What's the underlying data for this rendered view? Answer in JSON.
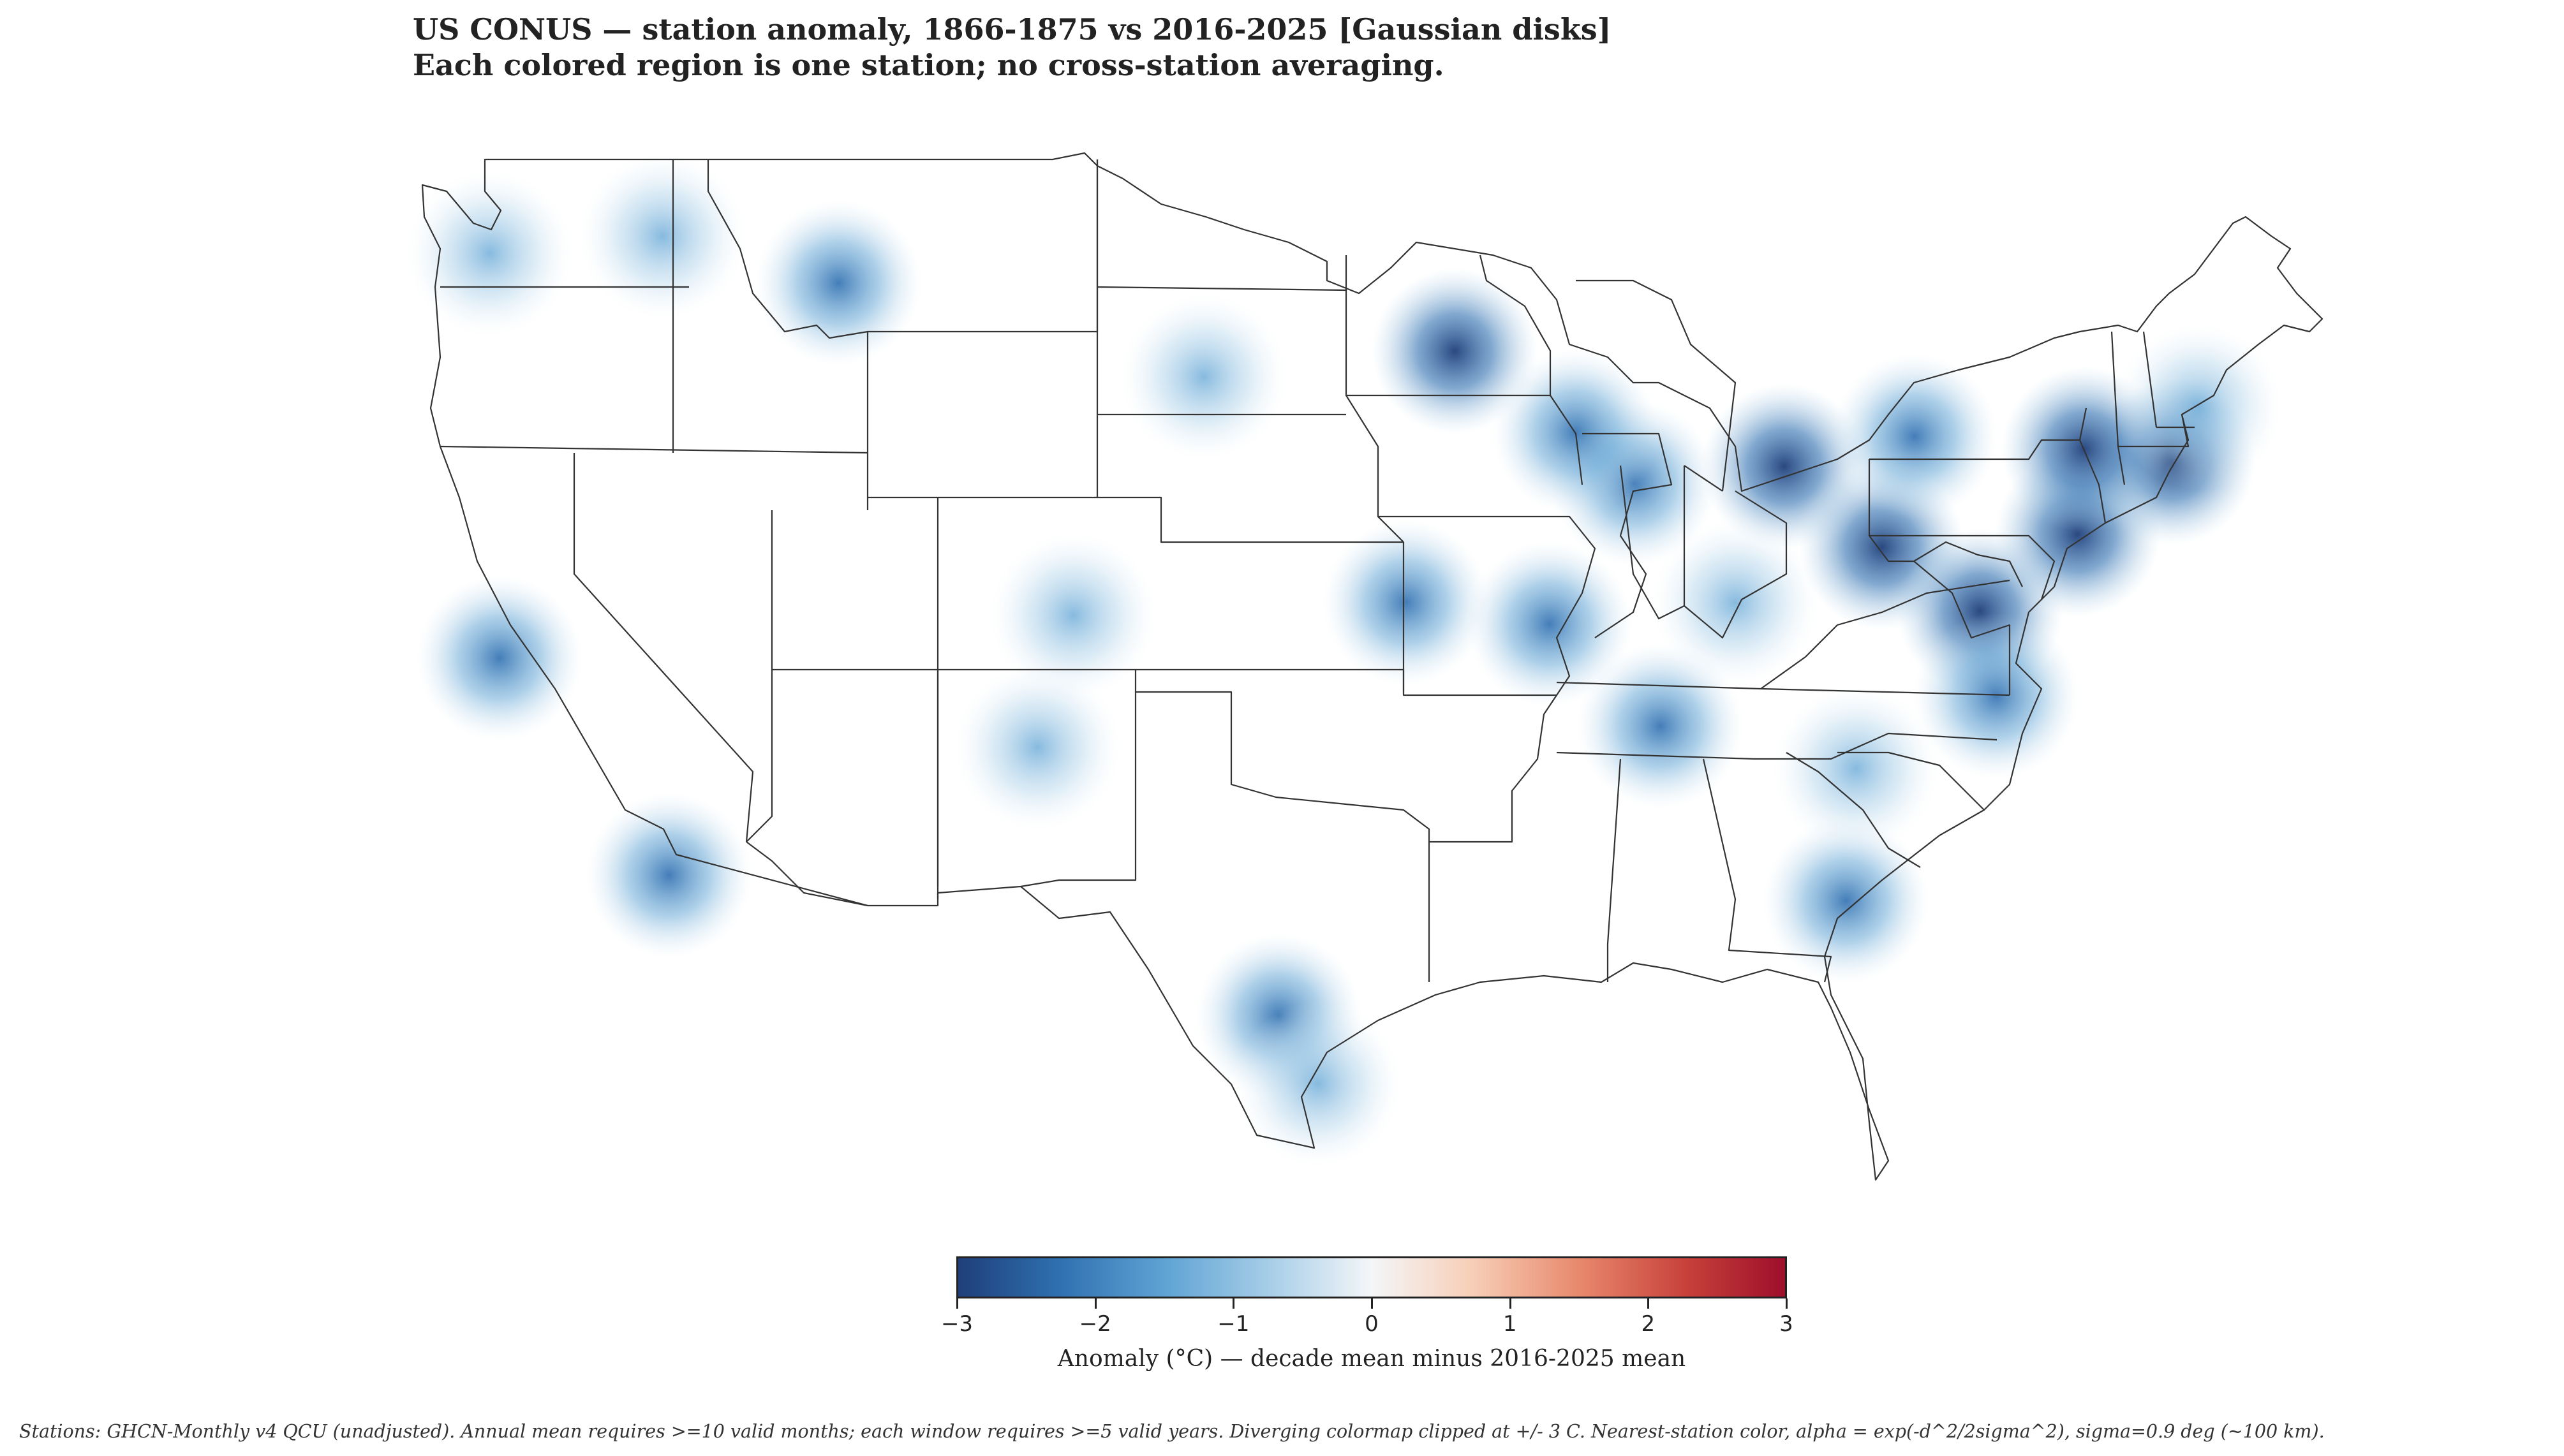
{
  "title": {
    "line1": "US CONUS — station anomaly, 1866-1875 vs 2016-2025  [Gaussian disks]",
    "line2": "Each colored region is one station; no cross-station averaging."
  },
  "colorbar": {
    "label": "Anomaly (°C) — decade mean minus 2016-2025 mean",
    "ticks": [
      "−3",
      "−2",
      "−1",
      "0",
      "1",
      "2",
      "3"
    ],
    "range": [
      -3,
      3
    ],
    "colormap": "diverging blue-white-red",
    "colors": {
      "negative": "#1f3f7a",
      "neutral": "#f4f6f8",
      "positive": "#9e0f2a"
    }
  },
  "footnote": "Stations: GHCN-Monthly v4 QCU (unadjusted). Annual mean requires >=10 valid months; each window requires >=5 valid years. Diverging colormap clipped at +/- 3 C. Nearest-station color, alpha = exp(-d^2/2sigma^2), sigma=0.9 deg (~100 km).",
  "map": {
    "region": "contiguous United States",
    "layers": [
      "state-boundaries",
      "station-anomaly-disks"
    ],
    "stations": [
      {
        "lon": -122.7,
        "lat": 47.3,
        "anomaly": -0.8
      },
      {
        "lon": -112.0,
        "lat": 46.6,
        "anomaly": -1.6
      },
      {
        "lon": -100.8,
        "lat": 44.4,
        "anomaly": -1.0
      },
      {
        "lon": -122.4,
        "lat": 37.8,
        "anomaly": -2.0
      },
      {
        "lon": -117.2,
        "lat": 32.7,
        "anomaly": -1.4
      },
      {
        "lon": -104.8,
        "lat": 38.8,
        "anomaly": -1.2
      },
      {
        "lon": -98.5,
        "lat": 29.4,
        "anomaly": -1.9
      },
      {
        "lon": -97.3,
        "lat": 27.8,
        "anomaly": -0.7
      },
      {
        "lon": -93.1,
        "lat": 45.0,
        "anomaly": -2.9
      },
      {
        "lon": -90.2,
        "lat": 38.6,
        "anomaly": -2.3
      },
      {
        "lon": -94.6,
        "lat": 39.1,
        "anomaly": -1.5
      },
      {
        "lon": -87.6,
        "lat": 41.9,
        "anomaly": -1.8
      },
      {
        "lon": -83.0,
        "lat": 42.3,
        "anomaly": -2.7
      },
      {
        "lon": -84.5,
        "lat": 39.1,
        "anomaly": -1.0
      },
      {
        "lon": -86.8,
        "lat": 36.2,
        "anomaly": -1.8
      },
      {
        "lon": -80.0,
        "lat": 40.4,
        "anomaly": -2.8
      },
      {
        "lon": -77.0,
        "lat": 38.9,
        "anomaly": -2.9
      },
      {
        "lon": -74.0,
        "lat": 40.7,
        "anomaly": -2.8
      },
      {
        "lon": -71.1,
        "lat": 42.4,
        "anomaly": -2.6
      },
      {
        "lon": -73.8,
        "lat": 42.7,
        "anomaly": -2.9
      },
      {
        "lon": -70.3,
        "lat": 43.7,
        "anomaly": -1.0
      },
      {
        "lon": -76.5,
        "lat": 36.9,
        "anomaly": -1.9
      },
      {
        "lon": -81.1,
        "lat": 32.1,
        "anomaly": -1.4
      },
      {
        "lon": -80.8,
        "lat": 35.2,
        "anomaly": -1.0
      },
      {
        "lon": -79.0,
        "lat": 43.0,
        "anomaly": -2.0
      },
      {
        "lon": -89.4,
        "lat": 43.1,
        "anomaly": -1.4
      },
      {
        "lon": -117.4,
        "lat": 47.7,
        "anomaly": -0.6
      },
      {
        "lon": -105.9,
        "lat": 35.7,
        "anomaly": -0.6
      }
    ]
  }
}
